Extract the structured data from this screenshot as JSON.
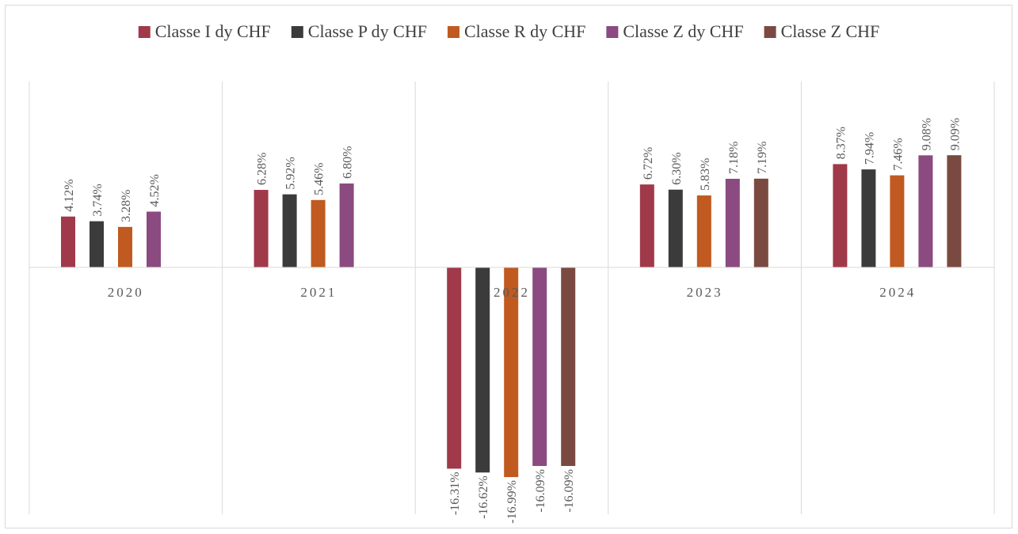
{
  "chart_data": {
    "type": "bar",
    "title": "",
    "xlabel": "",
    "ylabel": "",
    "categories": [
      "2020",
      "2021",
      "2022",
      "2023",
      "2024"
    ],
    "value_suffix": "%",
    "ylim": [
      -17.5,
      12.5
    ],
    "grid": "vertical category separators",
    "legend_position": "top",
    "series": [
      {
        "name": "Classe I dy CHF",
        "color": "#a0394a",
        "values": [
          4.12,
          6.28,
          -16.31,
          6.72,
          8.37
        ]
      },
      {
        "name": "Classe P dy CHF",
        "color": "#3b3b3b",
        "values": [
          3.74,
          5.92,
          -16.62,
          6.3,
          7.94
        ]
      },
      {
        "name": "Classe R dy CHF",
        "color": "#c05a20",
        "values": [
          3.28,
          5.46,
          -16.99,
          5.83,
          7.46
        ]
      },
      {
        "name": "Classe Z dy CHF",
        "color": "#8b4a80",
        "values": [
          4.52,
          6.8,
          -16.09,
          7.18,
          9.08
        ]
      },
      {
        "name": "Classe Z CHF",
        "color": "#7a4a40",
        "values": [
          null,
          null,
          -16.09,
          7.19,
          9.09
        ]
      }
    ]
  }
}
